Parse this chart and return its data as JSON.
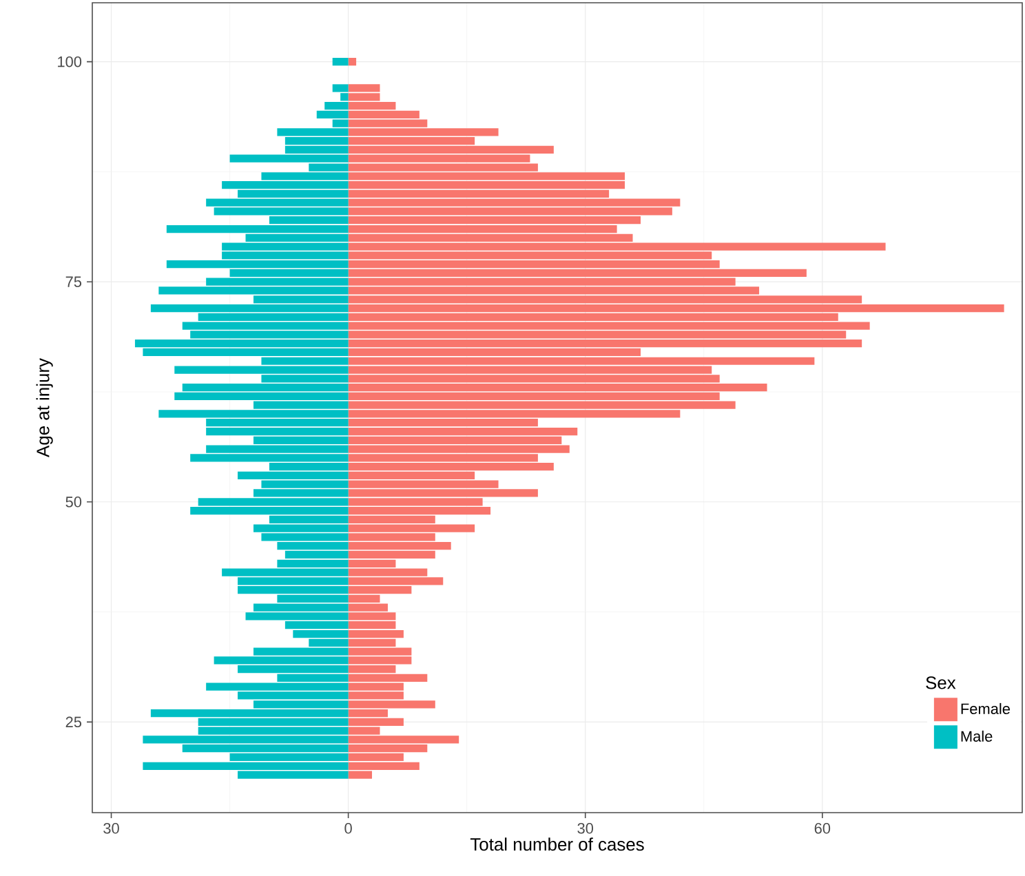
{
  "chart_data": {
    "type": "bar",
    "orientation": "horizontal",
    "xlabel": "Total number of cases",
    "ylabel": "Age at injury",
    "legend_title": "Sex",
    "x": [
      19,
      20,
      21,
      22,
      23,
      24,
      25,
      26,
      27,
      28,
      29,
      30,
      31,
      32,
      33,
      34,
      35,
      36,
      37,
      38,
      39,
      40,
      41,
      42,
      43,
      44,
      45,
      46,
      47,
      48,
      49,
      50,
      51,
      52,
      53,
      54,
      55,
      56,
      57,
      58,
      59,
      60,
      61,
      62,
      63,
      64,
      65,
      66,
      67,
      68,
      69,
      70,
      71,
      72,
      73,
      74,
      75,
      76,
      77,
      78,
      79,
      80,
      81,
      82,
      83,
      84,
      85,
      86,
      87,
      88,
      89,
      90,
      91,
      92,
      93,
      94,
      95,
      96,
      97,
      98,
      99,
      100
    ],
    "series": [
      {
        "name": "Female",
        "color": "#f8766d",
        "values": [
          3,
          9,
          7,
          10,
          14,
          4,
          7,
          5,
          11,
          7,
          7,
          10,
          6,
          8,
          8,
          6,
          7,
          6,
          6,
          5,
          4,
          8,
          12,
          10,
          6,
          11,
          13,
          11,
          16,
          11,
          18,
          17,
          24,
          19,
          16,
          26,
          24,
          28,
          27,
          29,
          24,
          42,
          49,
          47,
          53,
          47,
          46,
          59,
          37,
          65,
          63,
          66,
          62,
          83,
          65,
          52,
          49,
          58,
          47,
          46,
          68,
          36,
          34,
          37,
          41,
          42,
          33,
          35,
          35,
          24,
          23,
          26,
          16,
          19,
          10,
          9,
          6,
          4,
          4,
          0,
          0,
          1
        ]
      },
      {
        "name": "Male",
        "color": "#00bfc4",
        "values": [
          -14,
          -26,
          -15,
          -21,
          -26,
          -19,
          -19,
          -25,
          -12,
          -14,
          -18,
          -9,
          -14,
          -17,
          -12,
          -5,
          -7,
          -8,
          -13,
          -12,
          -9,
          -14,
          -14,
          -16,
          -9,
          -8,
          -9,
          -11,
          -12,
          -10,
          -20,
          -19,
          -12,
          -11,
          -14,
          -10,
          -20,
          -18,
          -12,
          -18,
          -18,
          -24,
          -12,
          -22,
          -21,
          -11,
          -22,
          -11,
          -26,
          -27,
          -20,
          -21,
          -19,
          -25,
          -12,
          -24,
          -18,
          -15,
          -23,
          -16,
          -16,
          -13,
          -23,
          -10,
          -17,
          -18,
          -14,
          -16,
          -11,
          -5,
          -15,
          -8,
          -8,
          -9,
          -2,
          -4,
          -3,
          -1,
          -2,
          0,
          0,
          -2
        ]
      }
    ],
    "xlim": [
      -32.4,
      85.3
    ],
    "xticks": [
      {
        "value": -30,
        "label": "30"
      },
      0,
      30,
      60
    ],
    "ylim": [
      14.7,
      106.7
    ],
    "yticks": [
      25,
      50,
      75,
      100
    ],
    "grid": true,
    "legend": "bottom right",
    "stacked": true
  }
}
